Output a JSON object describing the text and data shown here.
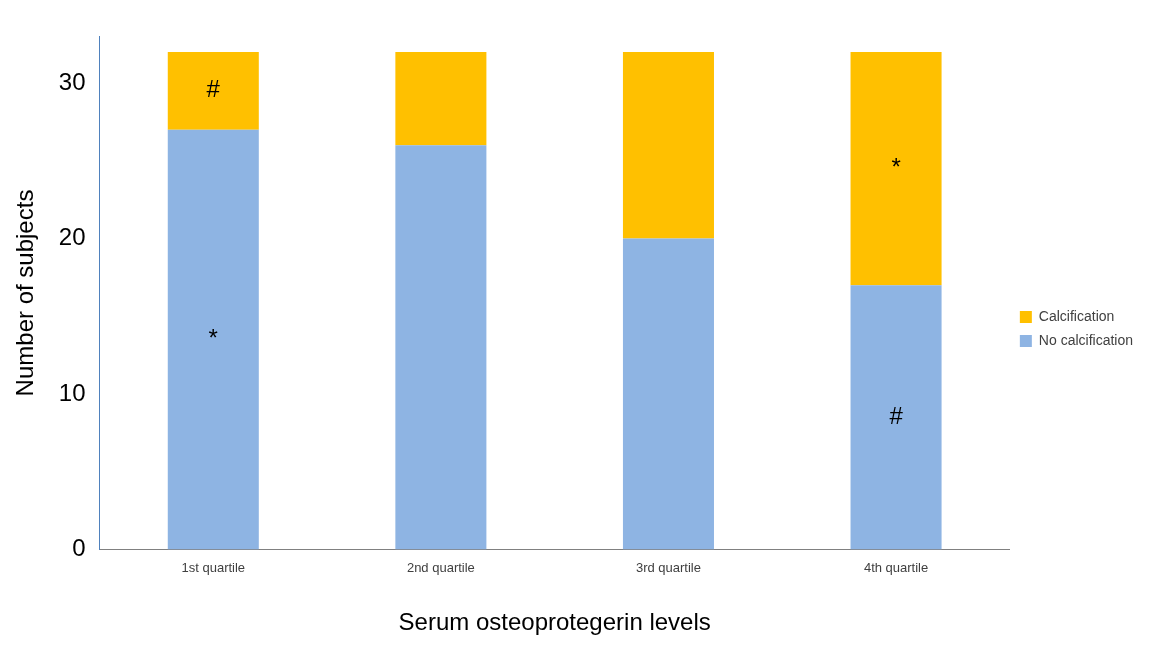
{
  "chart_data": {
    "type": "bar",
    "stacked": true,
    "xlabel": "Serum osteoprotegerin levels",
    "ylabel": "Number of subjects",
    "categories": [
      "1st quartile",
      "2nd quartile",
      "3rd quartile",
      "4th quartile"
    ],
    "series": [
      {
        "name": "No calcification",
        "color": "#8eb4e3",
        "values": [
          27,
          26,
          20,
          17
        ],
        "value_labels": [
          "*",
          null,
          null,
          "#"
        ]
      },
      {
        "name": "Calcification",
        "color": "#ffc000",
        "values": [
          5,
          6,
          12,
          15
        ],
        "value_labels": [
          "#",
          null,
          null,
          "*"
        ]
      }
    ],
    "ylim": [
      0,
      33
    ],
    "yticks": [
      0,
      10,
      20,
      30
    ],
    "grid": false,
    "legend": "right"
  }
}
